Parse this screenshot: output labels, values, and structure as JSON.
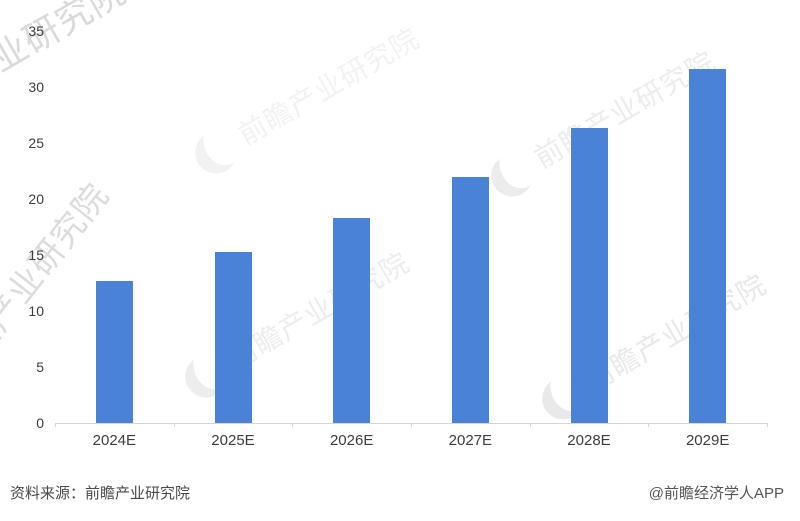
{
  "chart_data": {
    "type": "bar",
    "categories": [
      "2024E",
      "2025E",
      "2026E",
      "2027E",
      "2028E",
      "2029E"
    ],
    "values": [
      12.7,
      15.3,
      18.3,
      22.0,
      26.3,
      31.6
    ],
    "title": "",
    "xlabel": "",
    "ylabel": "",
    "ylim": [
      0,
      35
    ],
    "ytick_step": 5,
    "ytick_labels": [
      "0",
      "5",
      "10",
      "15",
      "20",
      "25",
      "30",
      "35"
    ],
    "grid": false,
    "legend": null,
    "bar_color": "#4a82d8",
    "axis_color": "#d6d6d6",
    "label_color": "#3d3d3d"
  },
  "watermark": {
    "text": "前瞻产业研究院",
    "logo": "qianzhan-logo"
  },
  "footer": {
    "source": "资料来源：前瞻产业研究院",
    "credit": "@前瞻经济学人APP"
  }
}
